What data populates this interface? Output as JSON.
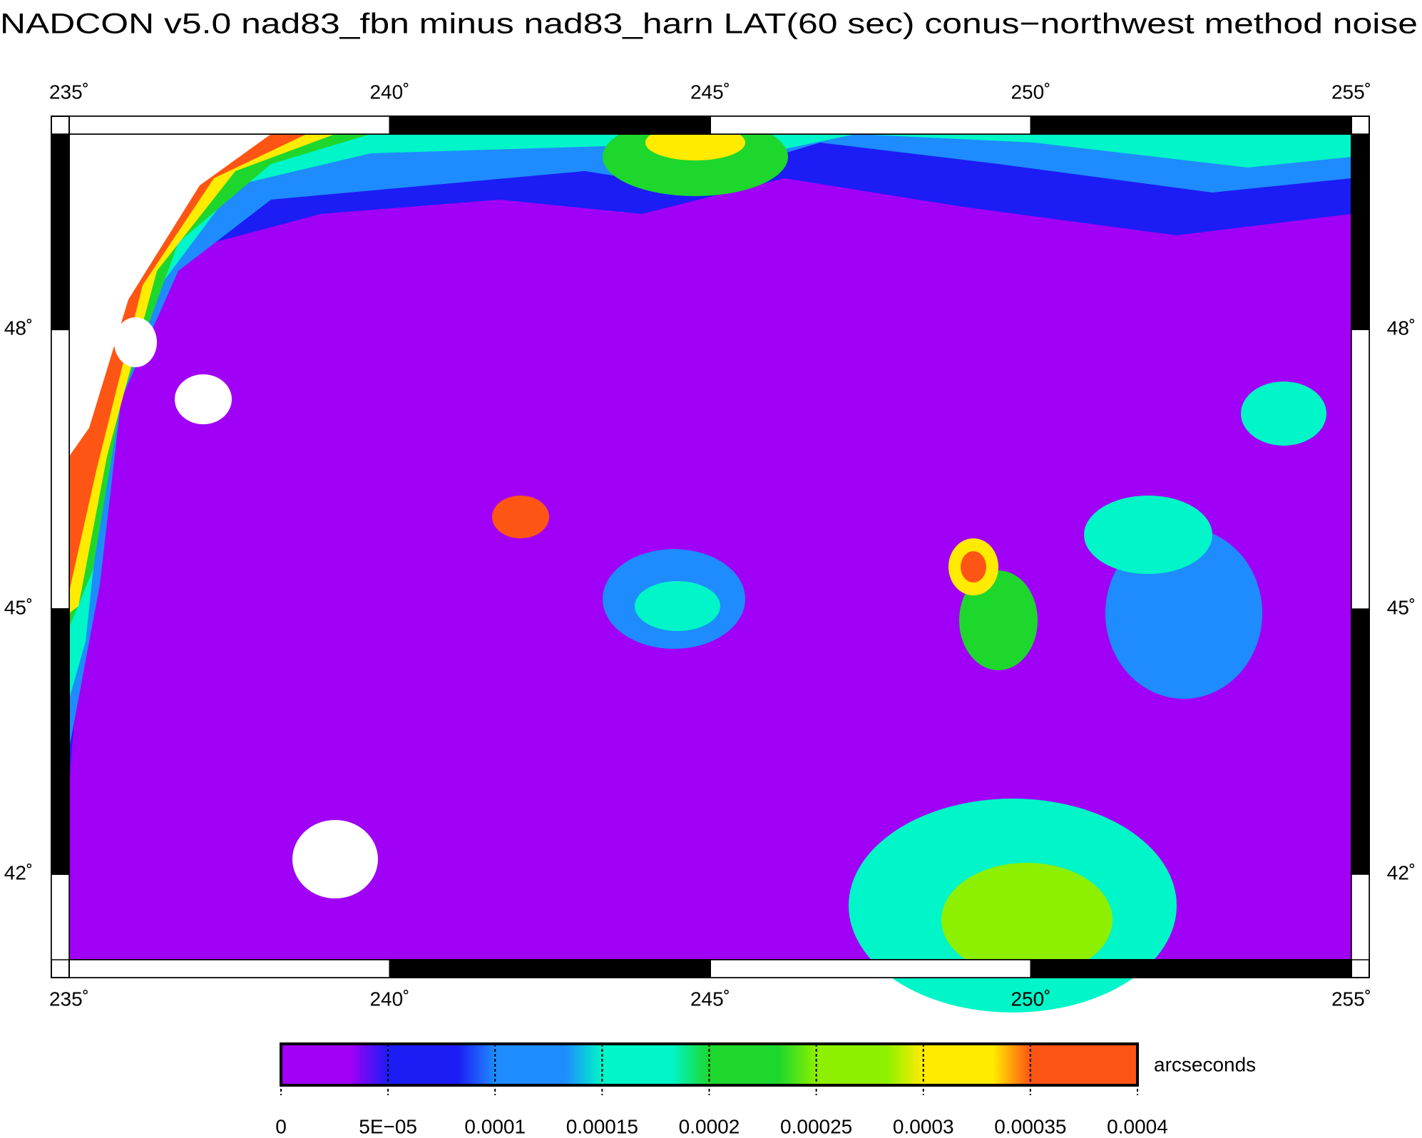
{
  "title": "NADCON v5.0 nad83_fbn minus nad83_harn LAT(60 sec) conus−northwest method noise",
  "map": {
    "xlim": [
      235,
      255
    ],
    "ylim": [
      41,
      50
    ],
    "xticks": [
      {
        "value": 235,
        "label": "235˚"
      },
      {
        "value": 240,
        "label": "240˚"
      },
      {
        "value": 245,
        "label": "245˚"
      },
      {
        "value": 250,
        "label": "250˚"
      },
      {
        "value": 255,
        "label": "255˚"
      }
    ],
    "yticks": [
      {
        "value": 42,
        "label": "42˚"
      },
      {
        "value": 45,
        "label": "45˚"
      },
      {
        "value": 48,
        "label": "48˚"
      }
    ]
  },
  "colorbar": {
    "label": "arcseconds",
    "ticks": [
      0,
      {
        "value": 5e-05,
        "label": "5E−05"
      },
      0.0001,
      0.00015,
      0.0002,
      0.00025,
      0.0003,
      0.00035,
      0.0004
    ],
    "colors": [
      "#a000f5",
      "#1c1cf5",
      "#1e8cff",
      "#00f5c8",
      "#1ed72d",
      "#8cf000",
      "#ffeb00",
      "#ff5514"
    ]
  }
}
